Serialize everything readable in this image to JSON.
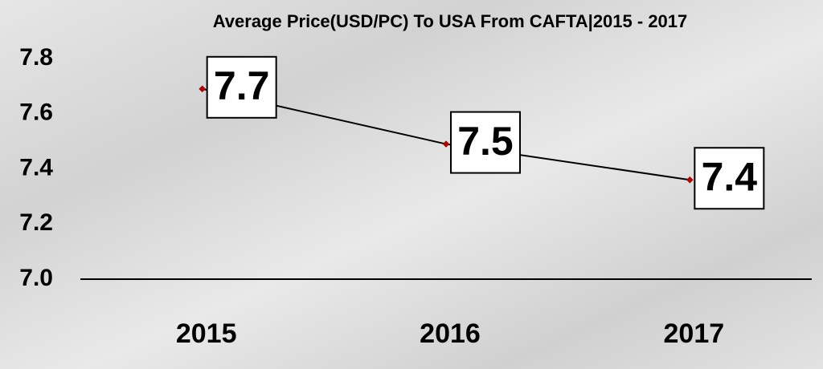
{
  "chart_data": {
    "type": "line",
    "title": "Average Price(USD/PC) To USA From CAFTA|2015 - 2017",
    "categories": [
      "2015",
      "2016",
      "2017"
    ],
    "values": [
      7.69,
      7.49,
      7.36
    ],
    "value_labels": [
      "7.7",
      "7.5",
      "7.4"
    ],
    "color": "#000000",
    "marker_color": "#c00000",
    "ylim": [
      7.0,
      7.8
    ],
    "yticks": [
      {
        "value": 7.0,
        "label": "7.0"
      },
      {
        "value": 7.2,
        "label": "7.2"
      },
      {
        "value": 7.4,
        "label": "7.4"
      },
      {
        "value": 7.6,
        "label": "7.6"
      },
      {
        "value": 7.8,
        "label": "7.8"
      }
    ],
    "grid": false
  }
}
